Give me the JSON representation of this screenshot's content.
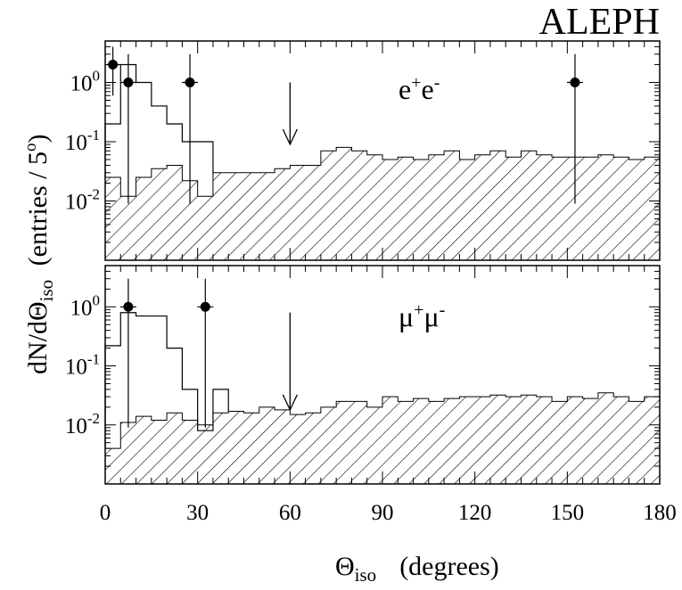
{
  "header": {
    "experiment": "ALEPH"
  },
  "y_axis_label": {
    "main": "dN/dΘ",
    "sub": "iso",
    "units": "(entries / 5",
    "deg": "o",
    "close": ")"
  },
  "x_axis_label": {
    "main": "Θ",
    "sub": "iso",
    "units": "(degrees)"
  },
  "chart_data": [
    {
      "type": "histogram",
      "panel": "top",
      "label": {
        "p1": "e",
        "s1": "+",
        "p2": "e",
        "s2": "-"
      },
      "x_range": [
        0,
        180
      ],
      "y_scale": "log",
      "y_range": [
        0.001,
        5
      ],
      "y_ticks": [
        1,
        0.1,
        0.01
      ],
      "y_tick_labels": [
        {
          "base": "10",
          "exp": "0"
        },
        {
          "base": "10",
          "exp": "-1"
        },
        {
          "base": "10",
          "exp": "-2"
        }
      ],
      "x_ticks": [
        0,
        30,
        60,
        90,
        120,
        150,
        180
      ],
      "bin_width": 5,
      "background_hatched": [
        0.025,
        0.012,
        0.025,
        0.035,
        0.04,
        0.022,
        0.012,
        0.03,
        0.03,
        0.03,
        0.03,
        0.035,
        0.04,
        0.04,
        0.07,
        0.08,
        0.07,
        0.06,
        0.05,
        0.055,
        0.05,
        0.06,
        0.07,
        0.05,
        0.06,
        0.07,
        0.055,
        0.07,
        0.06,
        0.055,
        0.055,
        0.055,
        0.06,
        0.055,
        0.05,
        0.055
      ],
      "signal_outline": [
        0.2,
        2.0,
        1.0,
        0.4,
        0.2,
        0.1,
        0.1
      ],
      "data_points": [
        {
          "x": 2.5,
          "y": 2.0,
          "err_low": 0.6,
          "err_high": 4.0
        },
        {
          "x": 7.5,
          "y": 1.0,
          "err_low": 0.009,
          "err_high": 3.0
        },
        {
          "x": 27.5,
          "y": 1.0,
          "err_low": 0.009,
          "err_high": 3.0
        },
        {
          "x": 152.5,
          "y": 1.0,
          "err_low": 0.009,
          "err_high": 3.0
        }
      ],
      "cut_arrow": {
        "x": 60,
        "y_top": 1.0,
        "y_bottom": 0.09
      }
    },
    {
      "type": "histogram",
      "panel": "bottom",
      "label": {
        "p1": "μ",
        "s1": "+",
        "p2": "μ",
        "s2": "-"
      },
      "x_range": [
        0,
        180
      ],
      "y_scale": "log",
      "y_range": [
        0.001,
        5
      ],
      "y_ticks": [
        1,
        0.1,
        0.01
      ],
      "y_tick_labels": [
        {
          "base": "10",
          "exp": "0"
        },
        {
          "base": "10",
          "exp": "-1"
        },
        {
          "base": "10",
          "exp": "-2"
        }
      ],
      "x_ticks": [
        0,
        30,
        60,
        90,
        120,
        150,
        180
      ],
      "x_tick_labels": [
        "0",
        "30",
        "60",
        "90",
        "120",
        "150",
        "180"
      ],
      "bin_width": 5,
      "background_hatched": [
        0.004,
        0.011,
        0.014,
        0.012,
        0.016,
        0.012,
        0.01,
        0.016,
        0.017,
        0.016,
        0.02,
        0.018,
        0.015,
        0.016,
        0.02,
        0.025,
        0.025,
        0.02,
        0.03,
        0.025,
        0.028,
        0.025,
        0.028,
        0.03,
        0.03,
        0.032,
        0.03,
        0.032,
        0.03,
        0.025,
        0.03,
        0.028,
        0.035,
        0.03,
        0.025,
        0.03
      ],
      "signal_outline": [
        0.22,
        0.8,
        0.7,
        0.7,
        0.2,
        0.04,
        0.008,
        0.04
      ],
      "data_points": [
        {
          "x": 7.5,
          "y": 1.0,
          "err_low": 0.009,
          "err_high": 3.0
        },
        {
          "x": 32.5,
          "y": 1.0,
          "err_low": 0.009,
          "err_high": 3.0
        }
      ],
      "cut_arrow": {
        "x": 60,
        "y_top": 0.8,
        "y_bottom": 0.018
      }
    }
  ]
}
